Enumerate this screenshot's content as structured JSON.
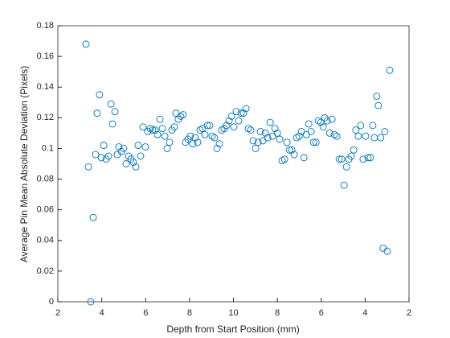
{
  "chart_data": {
    "type": "scatter",
    "xlabel": "Depth from Start Position (mm)",
    "ylabel": "Average Pin Mean Absolute Deviation (Pixels)",
    "color": "#0072bd",
    "xlim": [
      2,
      18
    ],
    "xticks": [
      2,
      4,
      6,
      8,
      10,
      {
        "value": 12,
        "label": "8"
      },
      {
        "value": 14,
        "label": "6"
      },
      {
        "value": 16,
        "label": "4"
      },
      {
        "value": 18,
        "label": "2"
      }
    ],
    "ylim": [
      0,
      0.18
    ],
    "yticks": [
      0,
      0.02,
      0.04,
      0.06,
      0.08,
      0.1,
      0.12,
      0.14,
      0.16,
      0.18
    ],
    "grid": false,
    "x": [
      3.28,
      3.39,
      3.5,
      3.61,
      3.72,
      3.79,
      3.9,
      3.98,
      4.09,
      4.2,
      4.31,
      4.42,
      4.49,
      4.6,
      4.71,
      4.78,
      4.89,
      5.0,
      5.11,
      5.22,
      5.33,
      5.44,
      5.55,
      5.66,
      5.77,
      5.88,
      5.99,
      6.1,
      6.21,
      6.32,
      6.43,
      6.54,
      6.65,
      6.76,
      6.87,
      6.98,
      7.09,
      7.2,
      7.31,
      7.38,
      7.49,
      7.6,
      7.71,
      7.82,
      7.93,
      8.04,
      8.15,
      8.26,
      8.37,
      8.48,
      8.59,
      8.7,
      8.81,
      8.92,
      9.03,
      9.14,
      9.25,
      9.36,
      9.47,
      9.58,
      9.69,
      9.8,
      9.91,
      10.02,
      10.13,
      10.24,
      10.35,
      10.46,
      10.57,
      10.68,
      10.79,
      10.9,
      11.01,
      11.12,
      11.23,
      11.34,
      11.45,
      11.56,
      11.67,
      11.78,
      11.89,
      12.0,
      12.11,
      12.22,
      12.33,
      12.44,
      12.55,
      12.66,
      12.77,
      12.88,
      12.99,
      13.1,
      13.21,
      13.32,
      13.43,
      13.54,
      13.65,
      13.76,
      13.87,
      13.98,
      14.09,
      14.16,
      14.27,
      14.38,
      14.49,
      14.6,
      14.71,
      14.82,
      14.93,
      15.04,
      15.15,
      15.26,
      15.37,
      15.48,
      15.58,
      15.69,
      15.8,
      15.91,
      16.02,
      16.13,
      16.24,
      16.35,
      16.42,
      16.53,
      16.6,
      16.71,
      16.82,
      16.9,
      17.01,
      17.12
    ],
    "values": [
      0.168,
      0.088,
      0.0,
      0.055,
      0.096,
      0.123,
      0.135,
      0.094,
      0.102,
      0.093,
      0.095,
      0.129,
      0.116,
      0.124,
      0.096,
      0.101,
      0.098,
      0.1,
      0.09,
      0.095,
      0.093,
      0.091,
      0.088,
      0.102,
      0.095,
      0.114,
      0.101,
      0.111,
      0.113,
      0.112,
      0.112,
      0.109,
      0.119,
      0.113,
      0.108,
      0.1,
      0.104,
      0.112,
      0.114,
      0.123,
      0.119,
      0.121,
      0.122,
      0.104,
      0.106,
      0.108,
      0.103,
      0.107,
      0.104,
      0.112,
      0.113,
      0.109,
      0.115,
      0.115,
      0.108,
      0.107,
      0.1,
      0.103,
      0.112,
      0.113,
      0.115,
      0.118,
      0.121,
      0.114,
      0.124,
      0.118,
      0.123,
      0.123,
      0.126,
      0.113,
      0.112,
      0.105,
      0.1,
      0.104,
      0.111,
      0.105,
      0.11,
      0.107,
      0.117,
      0.108,
      0.113,
      0.11,
      0.106,
      0.092,
      0.093,
      0.104,
      0.099,
      0.099,
      0.096,
      0.107,
      0.108,
      0.111,
      0.094,
      0.109,
      0.116,
      0.111,
      0.104,
      0.104,
      0.118,
      0.117,
      0.114,
      0.12,
      0.118,
      0.11,
      0.119,
      0.109,
      0.108,
      0.093,
      0.093,
      0.076,
      0.088,
      0.093,
      0.095,
      0.099,
      0.112,
      0.108,
      0.115,
      0.093,
      0.108,
      0.094,
      0.094,
      0.115,
      0.107,
      0.134,
      0.128,
      0.107,
      0.035,
      0.111,
      0.033,
      0.151
    ]
  }
}
